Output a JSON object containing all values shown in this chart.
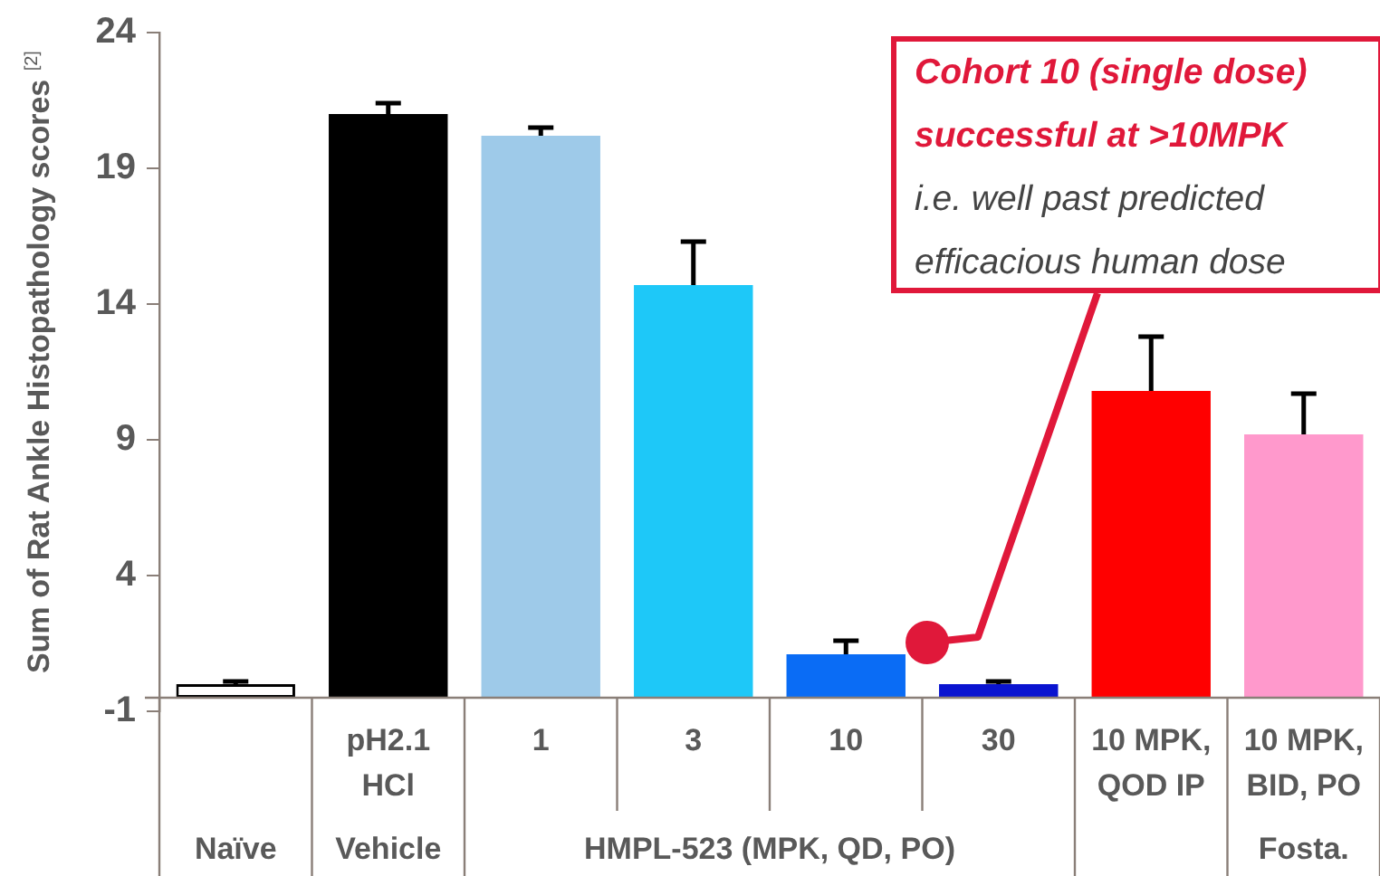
{
  "chart_data": {
    "type": "bar",
    "ylabel": "Sum of Rat  Ankle Histopathology scores $^{[2]}$",
    "categories": [
      null,
      "pH2.1\nHCl",
      "1",
      "3",
      "10",
      "30",
      "10 MPK,\nQOD IP",
      "10 MPK,\nBID, PO"
    ],
    "base": [
      -0.5,
      -0.5,
      -0.5,
      -0.5,
      -0.5,
      -0.5,
      -0.5,
      -0.5
    ],
    "values": [
      0.5,
      21.5,
      20.7,
      15.2,
      1.6,
      0.5,
      11.3,
      9.7
    ],
    "errors": [
      0.1,
      0.4,
      0.3,
      1.6,
      0.5,
      0.1,
      2.0,
      1.5
    ],
    "colors": [
      "#ffffff",
      "#000000",
      "#9ecae9",
      "#1ec8f8",
      "#0a6cf5",
      "#0a14d0",
      "#ff0000",
      "#ff99cc"
    ],
    "ylim": [
      -1,
      24
    ],
    "yticks": [
      -1,
      4,
      9,
      14,
      19,
      24
    ],
    "grid": false,
    "legend": false,
    "annotations": [
      "Naïve",
      "Vehicle",
      "HMPL-523 (MPK, QD, PO)",
      "Fosta.",
      "Cohort 10 (single dose) successful at >10MPK",
      "i.e. well past predicted efficacious human dose"
    ]
  }
}
